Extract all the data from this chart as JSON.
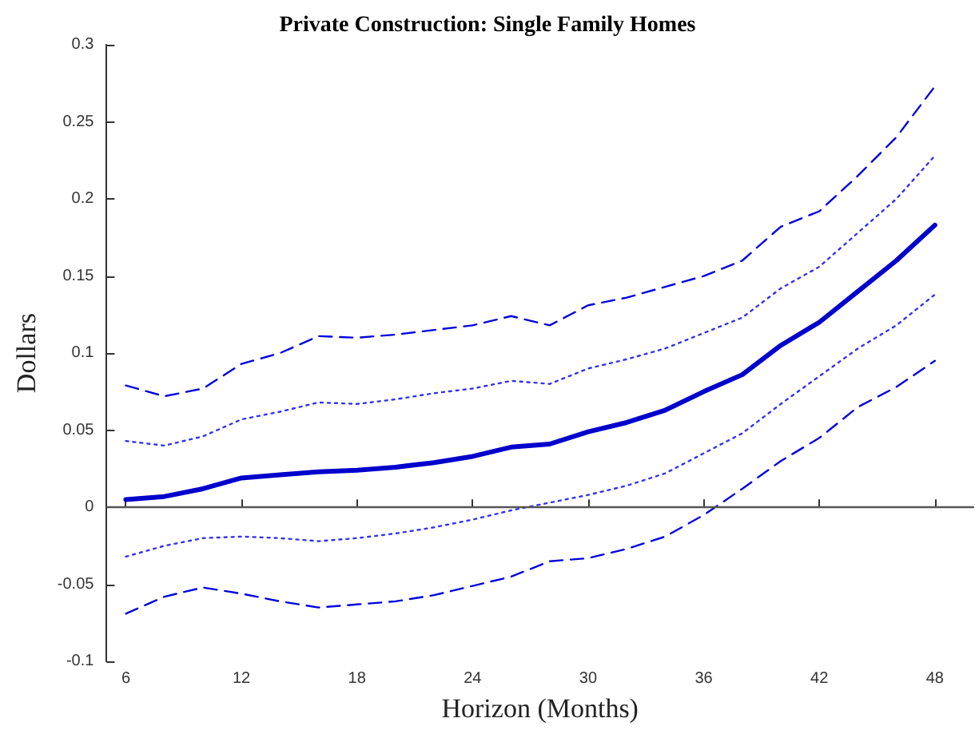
{
  "chart_data": {
    "type": "line",
    "title": "Private Construction: Single Family Homes",
    "xlabel": "Horizon (Months)",
    "ylabel": "Dollars",
    "x": [
      6,
      8,
      10,
      12,
      14,
      16,
      18,
      20,
      22,
      24,
      26,
      28,
      30,
      32,
      34,
      36,
      38,
      40,
      42,
      44,
      46,
      48
    ],
    "series": [
      {
        "color": "#0000dd",
        "line_style": "dashed",
        "values": [
          0.079,
          0.072,
          0.077,
          0.093,
          0.1,
          0.111,
          0.11,
          0.112,
          0.115,
          0.118,
          0.124,
          0.118,
          0.131,
          0.136,
          0.143,
          0.15,
          0.16,
          0.182,
          0.192,
          0.215,
          0.24,
          0.273
        ]
      },
      {
        "color": "#3333ee",
        "line_style": "dotted",
        "values": [
          0.043,
          0.04,
          0.046,
          0.057,
          0.062,
          0.068,
          0.067,
          0.07,
          0.074,
          0.077,
          0.082,
          0.08,
          0.09,
          0.096,
          0.103,
          0.113,
          0.123,
          0.142,
          0.156,
          0.178,
          0.2,
          0.228
        ]
      },
      {
        "color": "#0000cc",
        "line_style": "solid",
        "values": [
          0.005,
          0.007,
          0.012,
          0.019,
          0.021,
          0.023,
          0.024,
          0.026,
          0.029,
          0.033,
          0.039,
          0.041,
          0.049,
          0.055,
          0.063,
          0.075,
          0.086,
          0.105,
          0.12,
          0.14,
          0.16,
          0.183
        ]
      },
      {
        "color": "#3333ee",
        "line_style": "dotted",
        "values": [
          -0.032,
          -0.025,
          -0.02,
          -0.019,
          -0.02,
          -0.022,
          -0.02,
          -0.017,
          -0.013,
          -0.008,
          -0.002,
          0.003,
          0.008,
          0.014,
          0.022,
          0.035,
          0.048,
          0.067,
          0.085,
          0.103,
          0.118,
          0.138
        ]
      },
      {
        "color": "#0000dd",
        "line_style": "dashed",
        "values": [
          -0.069,
          -0.058,
          -0.052,
          -0.056,
          -0.061,
          -0.065,
          -0.063,
          -0.061,
          -0.057,
          -0.051,
          -0.045,
          -0.035,
          -0.033,
          -0.027,
          -0.019,
          -0.005,
          0.012,
          0.03,
          0.045,
          0.065,
          0.078,
          0.095
        ]
      }
    ],
    "xlim": [
      5,
      50
    ],
    "xticks": [
      6,
      12,
      18,
      24,
      30,
      36,
      42,
      48
    ],
    "ylim": [
      -0.1,
      0.3
    ],
    "yticks": [
      -0.1,
      -0.05,
      0,
      0.05,
      0.1,
      0.15,
      0.2,
      0.25,
      0.3
    ],
    "ref_lines": [
      {
        "axis": "y",
        "value": 0,
        "color": "#555555"
      }
    ],
    "grid": false,
    "marker": "none"
  }
}
